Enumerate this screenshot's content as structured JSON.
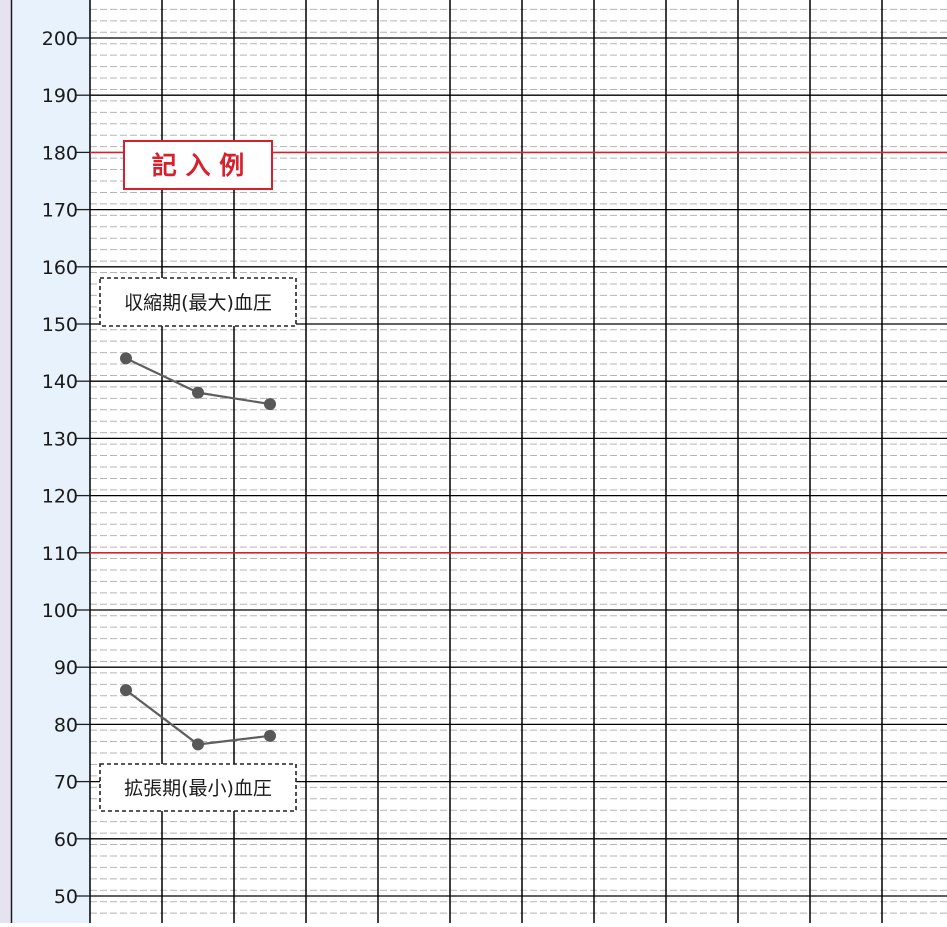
{
  "chart_data": {
    "type": "line",
    "y_ticks": [
      200,
      190,
      180,
      170,
      160,
      150,
      140,
      130,
      120,
      110,
      100,
      90,
      80,
      70,
      60,
      50
    ],
    "ylim": [
      46.5,
      206.5
    ],
    "reference_lines": [
      180,
      110
    ],
    "columns": 12,
    "series": [
      {
        "name": "収縮期(最大)血圧",
        "values": [
          144,
          138,
          136
        ]
      },
      {
        "name": "拡張期(最小)血圧",
        "values": [
          86,
          76.5,
          78
        ]
      }
    ],
    "stamp": "記 入 例",
    "grid": "on"
  },
  "colors": {
    "axis_panel": "#e8f2fc",
    "outer_border": "#e6e3f0",
    "grid_major": "#000000",
    "grid_minor": "#b5b5b5",
    "reference": "#d81f2d",
    "series_line": "#5f5f5f",
    "series_point": "#585858",
    "stamp": "#d81f2d"
  }
}
